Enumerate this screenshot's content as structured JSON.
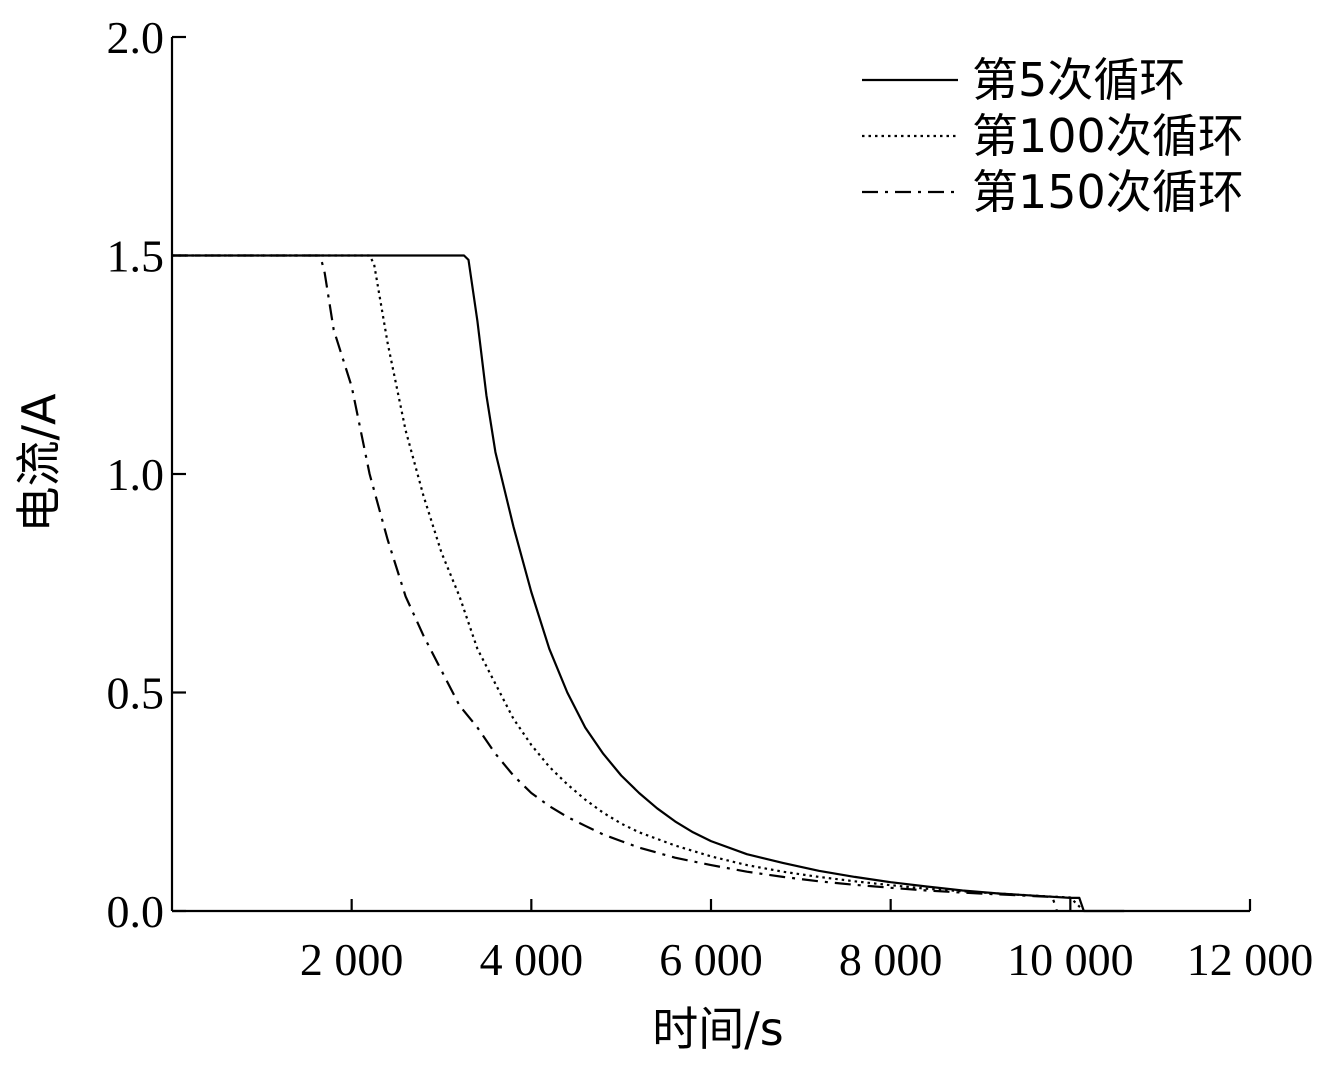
{
  "chart_data": {
    "type": "line",
    "xlabel": "时间/s",
    "ylabel": "电流/A",
    "xlim": [
      0,
      12000
    ],
    "ylim": [
      0,
      2.0
    ],
    "xticks": [
      2000,
      4000,
      6000,
      8000,
      10000,
      12000
    ],
    "xtick_labels": [
      "2 000",
      "4 000",
      "6 000",
      "8 000",
      "10 000",
      "12 000"
    ],
    "yticks": [
      0,
      0.5,
      1.0,
      1.5,
      2.0
    ],
    "ytick_labels": [
      "0.0",
      "0.5",
      "1.0",
      "1.5",
      "2.0"
    ],
    "grid": false,
    "legend_position": "top-right",
    "series": [
      {
        "name": "第5次循环",
        "style": "solid",
        "x": [
          0,
          3250,
          3300,
          3400,
          3500,
          3600,
          3800,
          4000,
          4200,
          4400,
          4600,
          4800,
          5000,
          5200,
          5400,
          5600,
          5800,
          6000,
          6400,
          6800,
          7200,
          7600,
          8000,
          8400,
          8800,
          9200,
          9600,
          10000,
          10100,
          10150,
          10300,
          10600
        ],
        "y": [
          1.5,
          1.5,
          1.49,
          1.35,
          1.18,
          1.05,
          0.88,
          0.73,
          0.6,
          0.5,
          0.42,
          0.36,
          0.31,
          0.27,
          0.235,
          0.205,
          0.18,
          0.16,
          0.13,
          0.11,
          0.092,
          0.078,
          0.066,
          0.056,
          0.047,
          0.04,
          0.035,
          0.03,
          0.03,
          0.0,
          0.0,
          0.0
        ]
      },
      {
        "name": "第100次循环",
        "style": "dotted",
        "x": [
          0,
          2200,
          2250,
          2400,
          2600,
          2800,
          3000,
          3200,
          3400,
          3600,
          3800,
          4000,
          4200,
          4400,
          4600,
          4800,
          5000,
          5200,
          5600,
          6000,
          6400,
          6800,
          7200,
          7600,
          8000,
          8400,
          8800,
          9200,
          9600,
          10000,
          10150
        ],
        "y": [
          1.5,
          1.5,
          1.48,
          1.3,
          1.1,
          0.95,
          0.82,
          0.72,
          0.6,
          0.52,
          0.44,
          0.38,
          0.33,
          0.29,
          0.255,
          0.225,
          0.2,
          0.18,
          0.15,
          0.125,
          0.105,
          0.09,
          0.078,
          0.068,
          0.059,
          0.051,
          0.045,
          0.04,
          0.035,
          0.031,
          0.0
        ]
      },
      {
        "name": "第150次循环",
        "style": "dashdot",
        "x": [
          0,
          1650,
          1700,
          1800,
          2000,
          2200,
          2400,
          2600,
          2800,
          3000,
          3200,
          3400,
          3600,
          3800,
          4000,
          4200,
          4400,
          4600,
          4800,
          5000,
          5200,
          5600,
          6000,
          6400,
          6800,
          7200,
          7600,
          8000,
          8400,
          8800,
          9200,
          9600,
          9800,
          9850
        ],
        "y": [
          1.5,
          1.5,
          1.46,
          1.33,
          1.2,
          1.0,
          0.85,
          0.72,
          0.63,
          0.55,
          0.47,
          0.42,
          0.36,
          0.31,
          0.27,
          0.24,
          0.215,
          0.195,
          0.175,
          0.16,
          0.145,
          0.122,
          0.105,
          0.09,
          0.078,
          0.068,
          0.06,
          0.053,
          0.047,
          0.042,
          0.038,
          0.034,
          0.032,
          0.0
        ]
      }
    ]
  }
}
